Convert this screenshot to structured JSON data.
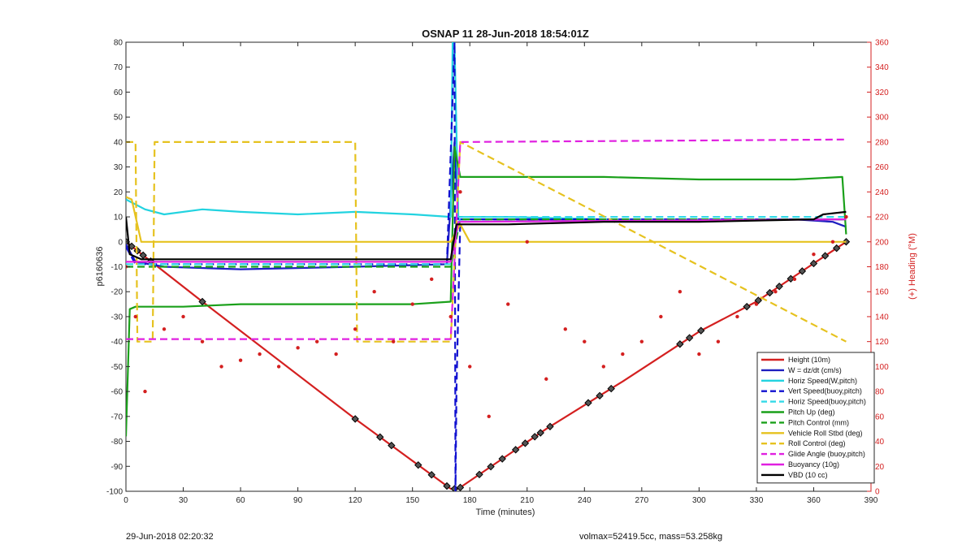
{
  "footer": {
    "left": "29-Jun-2018 02:20:32",
    "right": "volmax=52419.5cc, mass=53.258kg"
  },
  "chart_data": {
    "type": "line",
    "title": "OSNAP 11 28-Jun-2018 18:54:01Z",
    "xlabel": "Time (minutes)",
    "ylabel": "p6160636",
    "y2label": "(+) Heading (°M)",
    "xlim": [
      0,
      390
    ],
    "ylim": [
      -100,
      80
    ],
    "y2lim": [
      0,
      360
    ],
    "xticks": [
      "0",
      "30",
      "60",
      "90",
      "120",
      "150",
      "180",
      "210",
      "240",
      "270",
      "300",
      "330",
      "360",
      "390"
    ],
    "yticks": [
      "-100",
      "-90",
      "-80",
      "-70",
      "-60",
      "-50",
      "-40",
      "-30",
      "-20",
      "-10",
      "0",
      "10",
      "20",
      "30",
      "40",
      "50",
      "60",
      "70",
      "80"
    ],
    "y2ticks": [
      "0",
      "20",
      "40",
      "60",
      "80",
      "100",
      "120",
      "140",
      "160",
      "180",
      "200",
      "220",
      "240",
      "260",
      "280",
      "300",
      "320",
      "340",
      "360"
    ],
    "grid": false,
    "legend_position": "bottom-right",
    "series": [
      {
        "name": "Height (10m)",
        "color": "#d42020",
        "style": "solid",
        "x": [
          0,
          40,
          120,
          170,
          174,
          220,
          260,
          300,
          330,
          377
        ],
        "y": [
          0,
          -24,
          -71,
          -99,
          -99,
          -75,
          -56,
          -36,
          -24,
          0
        ],
        "markers": [
          0,
          3,
          6,
          9,
          13,
          40,
          120,
          133,
          139,
          153,
          160,
          168,
          172,
          175,
          185,
          191,
          197,
          204,
          209,
          214,
          217,
          222,
          242,
          248,
          254,
          290,
          295,
          301,
          325,
          331,
          337,
          342,
          348,
          354,
          360,
          366,
          372,
          377
        ]
      },
      {
        "name": "W = dz/dt (cm/s)",
        "color": "#1f1fc0",
        "style": "solid",
        "x": [
          0,
          5,
          20,
          60,
          120,
          168,
          172,
          174,
          200,
          250,
          300,
          350,
          370,
          377
        ],
        "y": [
          -1,
          -8,
          -10,
          -11,
          -10,
          -9,
          40,
          9,
          9,
          9,
          9,
          9,
          8,
          6
        ]
      },
      {
        "name": "Horiz Speed(W,pitch)",
        "color": "#22d3e0",
        "style": "solid",
        "x": [
          0,
          10,
          20,
          40,
          60,
          90,
          120,
          150,
          170,
          171,
          172,
          174,
          200,
          250,
          300,
          350,
          377
        ],
        "y": [
          17,
          13,
          11,
          13,
          12,
          11,
          12,
          11,
          10,
          80,
          80,
          10,
          10,
          9,
          9,
          9,
          9
        ]
      },
      {
        "name": "Vert Speed(buoy,pitch)",
        "color": "#1010d0",
        "style": "dashed",
        "x": [
          0,
          5,
          168,
          172,
          172.5,
          173,
          175,
          377
        ],
        "y": [
          -2,
          -9,
          -9,
          80,
          -100,
          -60,
          9,
          9
        ]
      },
      {
        "name": "Horiz Speed(buoy,pitch)",
        "color": "#33d9e8",
        "style": "dashed",
        "x": [
          0,
          170,
          175,
          377
        ],
        "y": [
          -9,
          -9,
          10,
          10
        ]
      },
      {
        "name": "Pitch Up (deg)",
        "color": "#1aa01a",
        "style": "solid",
        "x": [
          0,
          2,
          5,
          30,
          60,
          90,
          120,
          150,
          170,
          172,
          175,
          200,
          250,
          300,
          350,
          375,
          377
        ],
        "y": [
          -78,
          -27,
          -26,
          -26,
          -25,
          -25,
          -25,
          -25,
          -24,
          38,
          26,
          26,
          26,
          25,
          25,
          26,
          3
        ]
      },
      {
        "name": "Pitch Control (mm)",
        "color": "#1aa01a",
        "style": "dashed",
        "x": [
          0,
          170,
          175,
          377
        ],
        "y": [
          -10,
          -10,
          9,
          9
        ]
      },
      {
        "name": "Vehicle Roll Stbd (deg)",
        "color": "#e6c21f",
        "style": "solid",
        "x": [
          0,
          3,
          8,
          10,
          40,
          120,
          170,
          175,
          180,
          220,
          250,
          300,
          330,
          377
        ],
        "y": [
          18,
          17,
          0,
          0,
          0,
          0,
          0,
          7,
          0,
          0,
          0,
          0,
          0,
          0
        ]
      },
      {
        "name": "Roll Control (deg)",
        "color": "#e6c21f",
        "style": "dashed",
        "x": [
          0,
          5,
          6,
          14,
          15,
          120,
          121,
          170,
          175,
          377
        ],
        "y": [
          40,
          40,
          -40,
          -40,
          40,
          40,
          -40,
          -40,
          40,
          -40
        ]
      },
      {
        "name": "Glide Angle (buoy,pitch)",
        "color": "#e020e0",
        "style": "dashed",
        "x": [
          0,
          170,
          175,
          377
        ],
        "y": [
          -39,
          -39,
          40,
          41
        ]
      },
      {
        "name": "Buoyancy (10g)",
        "color": "#e020e0",
        "style": "solid",
        "x": [
          0,
          170,
          174,
          377
        ],
        "y": [
          -8,
          -8,
          8,
          9
        ]
      },
      {
        "name": "VBD (10 cc)",
        "color": "#000000",
        "style": "solid",
        "x": [
          0,
          2,
          8,
          170,
          173,
          175,
          200,
          250,
          300,
          360,
          365,
          377
        ],
        "y": [
          10,
          -5,
          -7,
          -7,
          7,
          7,
          7,
          8,
          8,
          9,
          11,
          12
        ]
      },
      {
        "name": "(+) Heading (°M)",
        "color": "#d42020",
        "style": "dotted",
        "axis": "right",
        "x": [
          0,
          5,
          10,
          20,
          30,
          40,
          50,
          60,
          70,
          80,
          90,
          100,
          110,
          120,
          130,
          140,
          150,
          160,
          170,
          175,
          180,
          190,
          200,
          210,
          220,
          230,
          240,
          250,
          260,
          270,
          280,
          290,
          300,
          310,
          320,
          330,
          340,
          350,
          360,
          370,
          377
        ],
        "y": [
          180,
          140,
          80,
          130,
          140,
          120,
          100,
          105,
          110,
          100,
          115,
          120,
          110,
          130,
          160,
          120,
          150,
          170,
          140,
          240,
          100,
          60,
          150,
          200,
          90,
          130,
          120,
          100,
          110,
          120,
          140,
          160,
          110,
          120,
          140,
          150,
          160,
          170,
          190,
          200,
          220
        ]
      }
    ]
  }
}
